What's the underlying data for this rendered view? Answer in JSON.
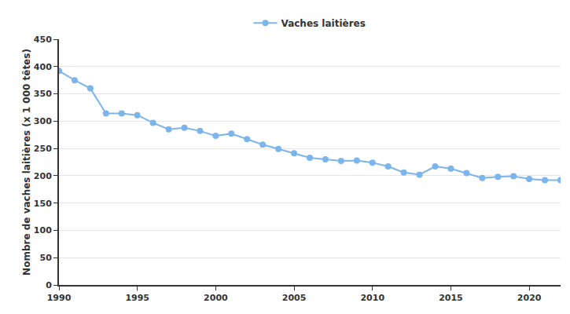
{
  "chart_data": {
    "type": "line",
    "y_label": "Nombre de vaches laitières (x 1 000 têtes)",
    "x": [
      1990,
      1991,
      1992,
      1993,
      1994,
      1995,
      1996,
      1997,
      1998,
      1999,
      2000,
      2001,
      2002,
      2003,
      2004,
      2005,
      2006,
      2007,
      2008,
      2009,
      2010,
      2011,
      2012,
      2013,
      2014,
      2015,
      2016,
      2017,
      2018,
      2019,
      2020,
      2021,
      2022
    ],
    "series": [
      {
        "name": "Vaches laitières",
        "color": "#7cb5ec",
        "marker": "circle",
        "values": [
          392,
          375,
          360,
          314,
          314,
          311,
          297,
          285,
          288,
          282,
          273,
          277,
          267,
          257,
          249,
          241,
          233,
          230,
          227,
          228,
          224,
          217,
          206,
          202,
          217,
          213,
          205,
          196,
          198,
          199,
          194,
          192,
          192
        ]
      }
    ],
    "xlim": [
      1990,
      2022
    ],
    "xticks": [
      1990,
      1995,
      2000,
      2005,
      2010,
      2015,
      2020
    ],
    "ylim": [
      0,
      450
    ],
    "yticks": [
      0,
      50,
      100,
      150,
      200,
      250,
      300,
      350,
      400,
      450
    ],
    "grid": true,
    "legend": "top"
  }
}
